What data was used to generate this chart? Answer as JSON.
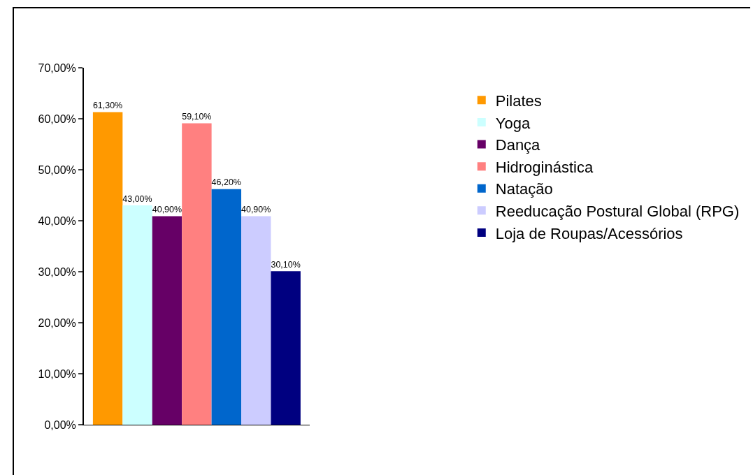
{
  "chart_data": {
    "type": "bar",
    "categories": [
      null
    ],
    "series": [
      {
        "name": "Pilates",
        "color": "#ff9900",
        "values": [
          61.3
        ],
        "value_labels": [
          "61,30%"
        ]
      },
      {
        "name": "Yoga",
        "color": "#ccffff",
        "values": [
          43.0
        ],
        "value_labels": [
          "43,00%"
        ]
      },
      {
        "name": "Dança",
        "color": "#660066",
        "values": [
          40.9
        ],
        "value_labels": [
          "40,90%"
        ]
      },
      {
        "name": "Hidroginástica",
        "color": "#ff8080",
        "values": [
          59.1
        ],
        "value_labels": [
          "59,10%"
        ]
      },
      {
        "name": "Natação",
        "color": "#0066cc",
        "values": [
          46.2
        ],
        "value_labels": [
          "46,20%"
        ]
      },
      {
        "name": "Reeducação Postural Global (RPG)",
        "color": "#ccccff",
        "values": [
          40.9
        ],
        "value_labels": [
          "40,90%"
        ]
      },
      {
        "name": "Loja de Roupas/Acessórios",
        "color": "#000080",
        "values": [
          30.1
        ],
        "value_labels": [
          "30,10%"
        ]
      }
    ],
    "ylim": [
      0,
      70
    ],
    "yticks": [
      {
        "value": 0,
        "label": "0,00%"
      },
      {
        "value": 10,
        "label": "10,00%"
      },
      {
        "value": 20,
        "label": "20,00%"
      },
      {
        "value": 30,
        "label": "30,00%"
      },
      {
        "value": 40,
        "label": "40,00%"
      },
      {
        "value": 50,
        "label": "50,00%"
      },
      {
        "value": 60,
        "label": "60,00%"
      },
      {
        "value": 70,
        "label": "70,00%"
      }
    ],
    "grid": false,
    "legend": "right"
  }
}
